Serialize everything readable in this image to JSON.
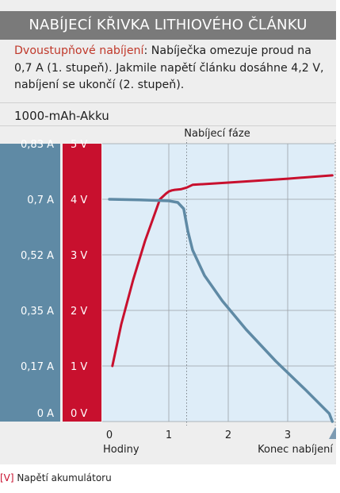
{
  "header": {
    "title": "NABÍJECÍ KŘIVKA LITHIOVÉHO ČLÁNKU",
    "desc_highlight": "Dvoustupňové nabíjení",
    "desc_text": ": Nabíječka omezuje proud na 0,7 A (1. stupeň). Jakmile napětí článku dosáhne 4,2 V, nabíjení se ukončí (2. stupeň)."
  },
  "chart_data": {
    "type": "line",
    "title": "1000-mAh-Akku",
    "subtitle": "Nabíjecí fáze",
    "xlabel": "Hodiny",
    "x_end_label": "Konec nabíjení",
    "xlim": [
      0,
      3.8
    ],
    "x_ticks": [
      "0",
      "1",
      "2",
      "3"
    ],
    "phase_lines_x": [
      1.3,
      3.8
    ],
    "current_axis": {
      "ticks": [
        "0 A",
        "0,17 A",
        "0,35 A",
        "0,52 A",
        "0,7 A",
        "0,83 A"
      ],
      "range": [
        0,
        0.875
      ]
    },
    "voltage_axis": {
      "ticks": [
        "0 V",
        "1 V",
        "2 V",
        "3 V",
        "4 V",
        "5 V"
      ],
      "range": [
        0,
        5
      ]
    },
    "grid": true,
    "colors": {
      "voltage": "#c8102e",
      "current": "#5f8aa5",
      "current_band": "#5f8aa5",
      "voltage_band": "#c8102e",
      "plot_bg": "#deedf8"
    },
    "series": [
      {
        "key": "voltage",
        "name": "Napětí akumulátoru",
        "unit": "V",
        "x": [
          0.05,
          0.2,
          0.4,
          0.6,
          0.85,
          0.95,
          1.0,
          1.05,
          1.1,
          1.2,
          1.3,
          1.4,
          2.0,
          3.0,
          3.75
        ],
        "y": [
          1.0,
          1.75,
          2.55,
          3.25,
          4.0,
          4.1,
          4.14,
          4.16,
          4.17,
          4.18,
          4.21,
          4.26,
          4.3,
          4.37,
          4.43
        ]
      },
      {
        "key": "current",
        "name": "",
        "unit": "A",
        "x": [
          0,
          0.5,
          1.0,
          1.15,
          1.25,
          1.32,
          1.4,
          1.6,
          1.9,
          2.3,
          2.8,
          3.3,
          3.7,
          3.75
        ],
        "y": [
          0.7,
          0.698,
          0.695,
          0.69,
          0.67,
          0.6,
          0.54,
          0.46,
          0.38,
          0.29,
          0.19,
          0.1,
          0.025,
          0.0
        ]
      }
    ]
  },
  "legend": {
    "key": "[V]",
    "label": "Napětí akumulátoru"
  }
}
